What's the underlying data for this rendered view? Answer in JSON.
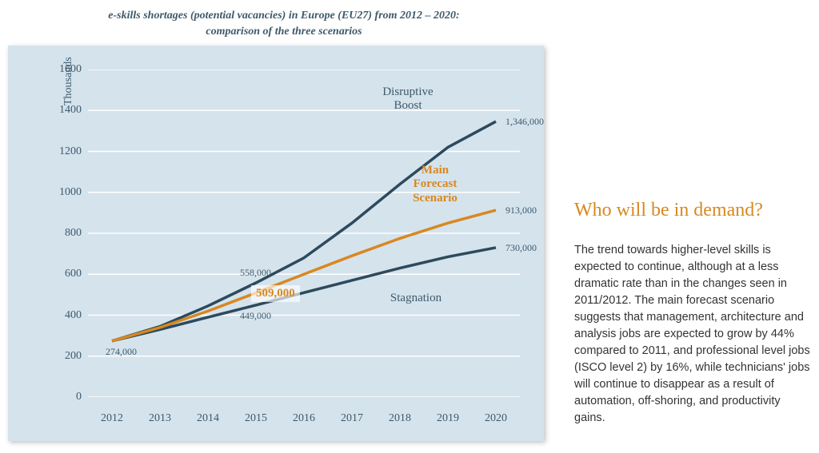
{
  "chart": {
    "type": "line",
    "title_line1": "e-skills shortages (potential vacancies) in Europe (EU27) from 2012 – 2020:",
    "title_line2": "comparison of the three scenarios",
    "background_color": "#d5e3ed",
    "grid_color": "#ffffff",
    "text_color": "#3d5a6b",
    "y_axis_title": "Thousands",
    "ylim": [
      0,
      1600
    ],
    "ytick_step": 200,
    "y_ticks": [
      0,
      200,
      400,
      600,
      800,
      1000,
      1200,
      1400,
      1600
    ],
    "x_categories": [
      "2012",
      "2013",
      "2014",
      "2015",
      "2016",
      "2017",
      "2018",
      "2019",
      "2020"
    ],
    "series": {
      "disruptive": {
        "label_line1": "Disruptive",
        "label_line2": "Boost",
        "color": "#2d4a5c",
        "values": [
          274,
          345,
          445,
          558,
          680,
          850,
          1040,
          1220,
          1346
        ],
        "end_label": "1,346,000",
        "mid_label_2015": "558,000"
      },
      "main": {
        "label_line1": "Main",
        "label_line2": "Forecast",
        "label_line3": "Scenario",
        "color": "#d88820",
        "values": [
          274,
          340,
          420,
          509,
          600,
          690,
          775,
          850,
          913
        ],
        "end_label": "913,000",
        "highlight_2015": "509,000"
      },
      "stagnation": {
        "label": "Stagnation",
        "color": "#2d4a5c",
        "values": [
          274,
          330,
          390,
          449,
          510,
          570,
          630,
          685,
          730
        ],
        "end_label": "730,000",
        "mid_label_2015": "449,000",
        "start_label": "274,000"
      }
    }
  },
  "sidebar": {
    "heading": "Who will be in demand?",
    "body": "The trend towards higher-level skills is expected to continue, although at a less dramatic rate than in the changes seen in 2011/2012. The main forecast scenario suggests that management, architecture and analysis jobs are expected to grow by 44% compared to 2011, and professional level jobs (ISCO level 2) by 16%, while technicians' jobs will continue to disappear as a result of automation, off-shoring, and productivity gains.",
    "heading_color": "#d88820",
    "body_color": "#333333"
  }
}
